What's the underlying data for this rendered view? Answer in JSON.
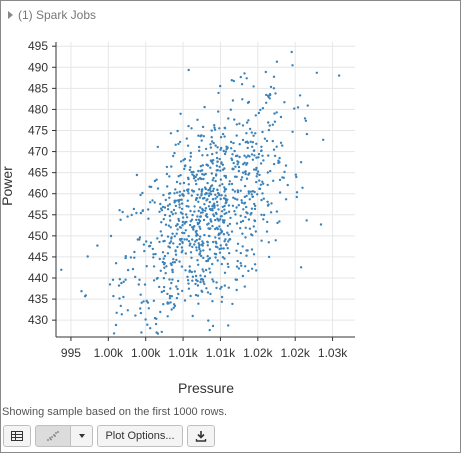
{
  "header": {
    "spark_jobs_label": "(1) Spark Jobs"
  },
  "footer": {
    "note": "Showing sample based on the first 1000 rows."
  },
  "toolbar": {
    "table_icon": "table-icon",
    "chart_icon": "scatter-chart-icon",
    "options_label": "Plot Options...",
    "download_icon": "download-icon"
  },
  "colors": {
    "point": "#3b82b8",
    "axis": "#333333",
    "grid": "#e6e6e6"
  },
  "chart_data": {
    "type": "scatter",
    "title": "",
    "xlabel": "Pressure",
    "ylabel": "Power",
    "xlim": [
      993,
      1033
    ],
    "ylim": [
      426,
      496
    ],
    "x_ticks": [
      {
        "value": 995,
        "label": "995"
      },
      {
        "value": 1000,
        "label": "1.00k"
      },
      {
        "value": 1005,
        "label": "1.00k"
      },
      {
        "value": 1010,
        "label": "1.01k"
      },
      {
        "value": 1015,
        "label": "1.01k"
      },
      {
        "value": 1020,
        "label": "1.02k"
      },
      {
        "value": 1025,
        "label": "1.02k"
      },
      {
        "value": 1030,
        "label": "1.03k"
      }
    ],
    "y_ticks": [
      430,
      435,
      440,
      445,
      450,
      455,
      460,
      465,
      470,
      475,
      480,
      485,
      490,
      495
    ],
    "grid": true,
    "legend": "none",
    "n_points": 1000,
    "x_center": 1013.2,
    "x_spread": 5.6,
    "y_base": 455.0,
    "y_slope": 1.35,
    "y_spread": 11.5
  }
}
